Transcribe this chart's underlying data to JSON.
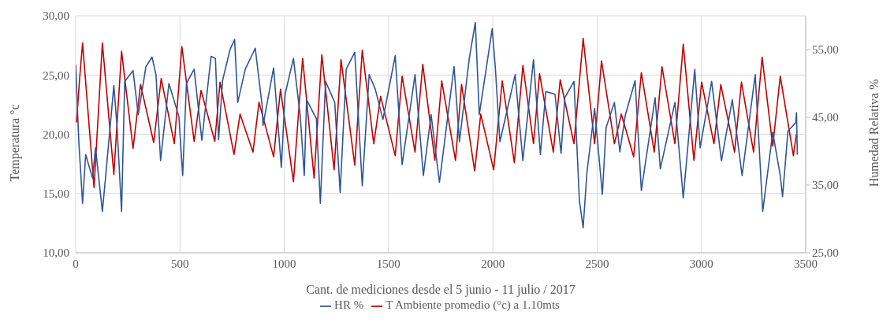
{
  "chart_data": {
    "type": "line",
    "xlabel": "Cant. de mediciones desde el 5 junio - 11 julio / 2017",
    "ylabel": "Temperatura °c",
    "y2label": "Humedad Relativa %",
    "xlim": [
      0,
      3500
    ],
    "xticks": [
      0,
      500,
      1000,
      1500,
      2000,
      2500,
      3000,
      3500
    ],
    "ylim": [
      10,
      30
    ],
    "yticks": [
      {
        "value": 10,
        "label": "10,00"
      },
      {
        "value": 15,
        "label": "15,00"
      },
      {
        "value": 20,
        "label": "20,00"
      },
      {
        "value": 25,
        "label": "25,00"
      },
      {
        "value": 30,
        "label": "30,00"
      }
    ],
    "y2lim": [
      25,
      60
    ],
    "y2ticks": [
      {
        "value": 25,
        "label": "25,00"
      },
      {
        "value": 35,
        "label": "35,00"
      },
      {
        "value": 45,
        "label": "45,00"
      },
      {
        "value": 55,
        "label": "55,00"
      }
    ],
    "grid": true,
    "legend": "bottom",
    "series": [
      {
        "name": "T Ambiente promedio (°c) a 1.10mts",
        "color": "#c00000",
        "x": [
          4,
          18,
          33,
          88,
          128,
          183,
          220,
          275,
          311,
          374,
          410,
          473,
          509,
          568,
          601,
          667,
          692,
          759,
          788,
          850,
          879,
          949,
          982,
          1044,
          1088,
          1143,
          1180,
          1239,
          1272,
          1338,
          1374,
          1429,
          1462,
          1532,
          1565,
          1627,
          1664,
          1722,
          1755,
          1821,
          1850,
          1913,
          1942,
          2004,
          2045,
          2103,
          2144,
          2195,
          2224,
          2290,
          2323,
          2389,
          2433,
          2488,
          2521,
          2583,
          2616,
          2675,
          2712,
          2774,
          2811,
          2873,
          2913,
          2964,
          3001,
          3060,
          3093,
          3159,
          3192,
          3250,
          3291,
          3342,
          3378,
          3441,
          3455
        ],
        "values": [
          21.0,
          24.5,
          27.7,
          15.5,
          27.7,
          16.6,
          27.0,
          18.8,
          24.2,
          19.3,
          24.7,
          19.2,
          27.4,
          19.4,
          23.7,
          19.4,
          24.4,
          18.3,
          21.7,
          18.5,
          22.7,
          18.1,
          23.8,
          16.0,
          26.4,
          16.3,
          26.7,
          17.0,
          26.3,
          17.4,
          27.1,
          19.2,
          23.2,
          18.2,
          24.9,
          18.5,
          25.9,
          17.8,
          24.5,
          17.8,
          24.2,
          16.9,
          21.7,
          17.0,
          24.5,
          17.6,
          25.8,
          19.2,
          25.1,
          18.5,
          24.6,
          19.2,
          28.1,
          19.2,
          26.2,
          19.2,
          21.7,
          18.1,
          25.2,
          18.5,
          25.7,
          19.2,
          27.6,
          17.8,
          24.4,
          19.2,
          24.2,
          18.5,
          24.4,
          18.5,
          26.5,
          19.0,
          24.9,
          18.2,
          20.0
        ]
      },
      {
        "name": "HR %",
        "color": "#2f5597",
        "axis": "y2",
        "x": [
          0,
          15,
          33,
          48,
          81,
          95,
          128,
          147,
          183,
          198,
          220,
          235,
          275,
          300,
          337,
          366,
          385,
          407,
          447,
          495,
          513,
          531,
          568,
          605,
          649,
          670,
          685,
          704,
          740,
          762,
          777,
          813,
          861,
          894,
          898,
          949,
          986,
          1004,
          1044,
          1077,
          1096,
          1107,
          1154,
          1173,
          1198,
          1242,
          1268,
          1297,
          1338,
          1374,
          1407,
          1436,
          1473,
          1532,
          1565,
          1627,
          1667,
          1704,
          1744,
          1814,
          1840,
          1887,
          1916,
          1935,
          1997,
          2012,
          2034,
          2107,
          2144,
          2195,
          2228,
          2254,
          2298,
          2327,
          2345,
          2389,
          2415,
          2433,
          2451,
          2488,
          2525,
          2543,
          2583,
          2609,
          2635,
          2682,
          2712,
          2778,
          2803,
          2873,
          2913,
          2968,
          2994,
          3049,
          3096,
          3148,
          3195,
          3258,
          3294,
          3342,
          3378,
          3389,
          3415,
          3452,
          3456,
          3460
        ],
        "values": [
          52.8,
          41.4,
          32.3,
          39.5,
          36.0,
          40.5,
          31.1,
          37.4,
          49.7,
          43.8,
          31.1,
          50.3,
          51.9,
          45.4,
          52.5,
          53.9,
          51.3,
          38.6,
          50.0,
          45.1,
          36.4,
          50.0,
          52.1,
          41.6,
          54.0,
          53.7,
          41.7,
          50.4,
          55.0,
          56.5,
          47.2,
          52.1,
          55.2,
          46.7,
          43.8,
          52.3,
          37.6,
          48.4,
          53.7,
          45.1,
          36.4,
          47.6,
          44.8,
          32.3,
          50.3,
          47.2,
          33.9,
          52.1,
          54.6,
          34.9,
          51.3,
          49.2,
          44.7,
          54.1,
          38.0,
          51.3,
          36.4,
          45.4,
          35.4,
          52.5,
          41.4,
          53.7,
          59.0,
          45.4,
          58.1,
          52.3,
          41.4,
          51.3,
          38.6,
          53.5,
          39.5,
          48.8,
          48.4,
          39.7,
          47.9,
          50.3,
          32.7,
          28.7,
          36.8,
          46.3,
          33.6,
          43.5,
          47.2,
          39.9,
          45.3,
          50.4,
          34.2,
          47.9,
          37.4,
          47.2,
          33.1,
          52.1,
          40.5,
          50.3,
          38.6,
          47.6,
          36.4,
          51.3,
          31.1,
          42.8,
          36.4,
          33.3,
          43.0,
          44.2,
          45.7,
          39.5
        ]
      }
    ]
  }
}
